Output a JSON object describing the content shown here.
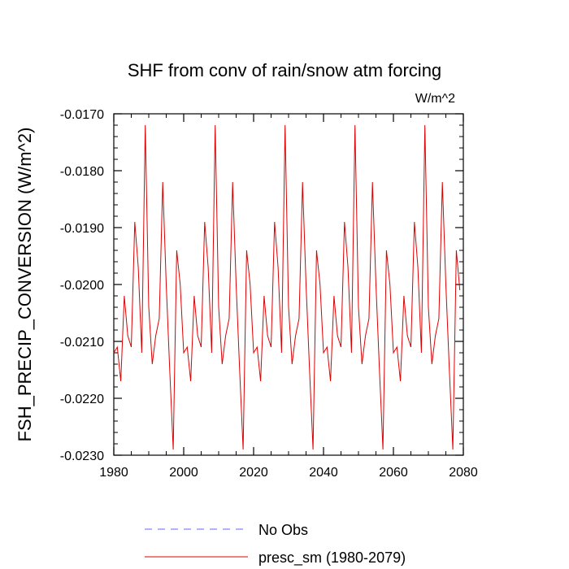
{
  "chart_data": {
    "type": "line",
    "title": "SHF from conv of rain/snow atm forcing",
    "units_label": "W/m^2",
    "xlabel": "",
    "ylabel": "FSH_PRECIP_CONVERSION  (W/m^2)",
    "xlim": [
      1980,
      2080
    ],
    "ylim": [
      -0.023,
      -0.017
    ],
    "x_ticks": [
      1980,
      2000,
      2020,
      2040,
      2060,
      2080
    ],
    "y_ticks": [
      -0.017,
      -0.018,
      -0.019,
      -0.02,
      -0.021,
      -0.022,
      -0.023
    ],
    "y_tick_labels": [
      "-0.0170",
      "-0.0180",
      "-0.0190",
      "-0.0200",
      "-0.0210",
      "-0.0220",
      "-0.0230"
    ],
    "grid": false,
    "legend_position": "bottom",
    "colors": {
      "obs": "#6666ee",
      "model": "#dd0000"
    },
    "series": [
      {
        "name": "No Obs",
        "style": "dashed",
        "values": []
      },
      {
        "name": "presc_sm (1980-2079)",
        "style": "solid",
        "x": [
          1980,
          1981,
          1982,
          1983,
          1984,
          1985,
          1986,
          1987,
          1988,
          1989,
          1990,
          1991,
          1992,
          1993,
          1994,
          1995,
          1996,
          1997,
          1998,
          1999,
          2000,
          2001,
          2002,
          2003,
          2004,
          2005,
          2006,
          2007,
          2008,
          2009,
          2010,
          2011,
          2012,
          2013,
          2014,
          2015,
          2016,
          2017,
          2018,
          2019,
          2020,
          2021,
          2022,
          2023,
          2024,
          2025,
          2026,
          2027,
          2028,
          2029,
          2030,
          2031,
          2032,
          2033,
          2034,
          2035,
          2036,
          2037,
          2038,
          2039,
          2040,
          2041,
          2042,
          2043,
          2044,
          2045,
          2046,
          2047,
          2048,
          2049,
          2050,
          2051,
          2052,
          2053,
          2054,
          2055,
          2056,
          2057,
          2058,
          2059,
          2060,
          2061,
          2062,
          2063,
          2064,
          2065,
          2066,
          2067,
          2068,
          2069,
          2070,
          2071,
          2072,
          2073,
          2074,
          2075,
          2076,
          2077,
          2078,
          2079
        ],
        "values": [
          -0.0212,
          -0.0211,
          -0.0217,
          -0.0202,
          -0.0209,
          -0.0211,
          -0.0189,
          -0.0197,
          -0.0212,
          -0.0172,
          -0.0204,
          -0.0214,
          -0.0209,
          -0.0206,
          -0.0182,
          -0.02,
          -0.0215,
          -0.0229,
          -0.0194,
          -0.02,
          -0.0212,
          -0.0211,
          -0.0217,
          -0.0202,
          -0.0209,
          -0.0211,
          -0.0189,
          -0.0197,
          -0.0212,
          -0.0172,
          -0.0204,
          -0.0214,
          -0.0209,
          -0.0206,
          -0.0182,
          -0.02,
          -0.0215,
          -0.0229,
          -0.0194,
          -0.02,
          -0.0212,
          -0.0211,
          -0.0217,
          -0.0202,
          -0.0209,
          -0.0211,
          -0.0189,
          -0.0197,
          -0.0212,
          -0.0172,
          -0.0204,
          -0.0214,
          -0.0209,
          -0.0206,
          -0.0182,
          -0.02,
          -0.0215,
          -0.0229,
          -0.0194,
          -0.02,
          -0.0212,
          -0.0211,
          -0.0217,
          -0.0202,
          -0.0209,
          -0.0211,
          -0.0189,
          -0.0197,
          -0.0212,
          -0.0172,
          -0.0204,
          -0.0214,
          -0.0209,
          -0.0206,
          -0.0182,
          -0.02,
          -0.0215,
          -0.0229,
          -0.0194,
          -0.02,
          -0.0212,
          -0.0211,
          -0.0217,
          -0.0202,
          -0.0209,
          -0.0211,
          -0.0189,
          -0.0197,
          -0.0212,
          -0.0172,
          -0.0204,
          -0.0214,
          -0.0209,
          -0.0206,
          -0.0182,
          -0.02,
          -0.0215,
          -0.0229,
          -0.0194,
          -0.0201
        ]
      }
    ]
  }
}
